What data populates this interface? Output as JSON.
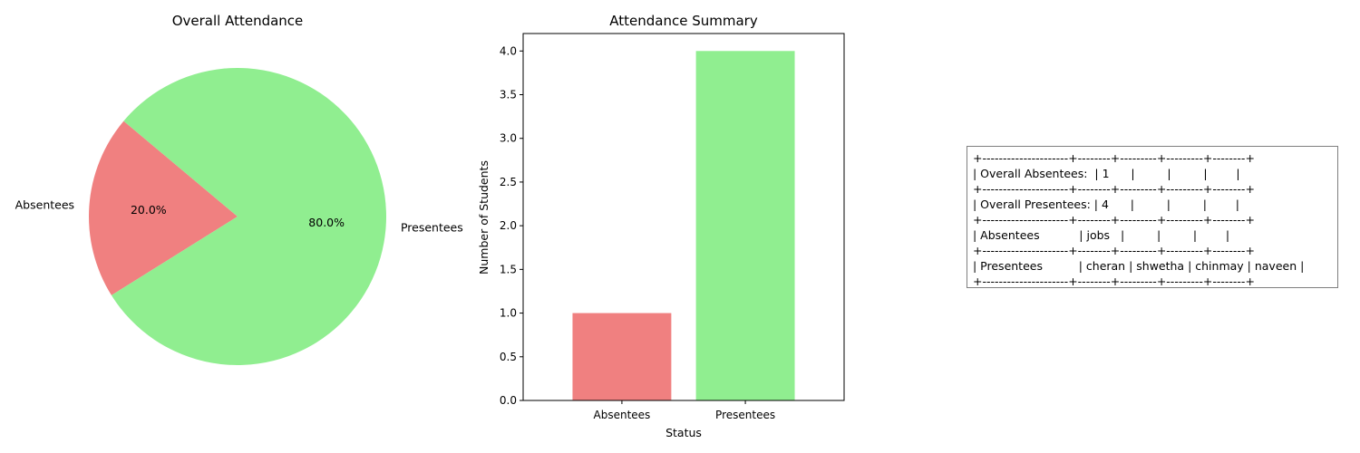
{
  "colors": {
    "absentees": "#f08080",
    "presentees": "#90ee90"
  },
  "chart_data": [
    {
      "type": "pie",
      "title": "Overall Attendance",
      "slices": [
        {
          "label": "Absentees",
          "value": 1,
          "percent_label": "20.0%",
          "color": "#f08080"
        },
        {
          "label": "Presentees",
          "value": 4,
          "percent_label": "80.0%",
          "color": "#90ee90"
        }
      ],
      "start_angle": 140
    },
    {
      "type": "bar",
      "title": "Attendance Summary",
      "categories": [
        "Absentees",
        "Presentees"
      ],
      "values": [
        1,
        4
      ],
      "colors": [
        "#f08080",
        "#90ee90"
      ],
      "xlabel": "Status",
      "ylabel": "Number of Students",
      "ylim": [
        0,
        4.2
      ],
      "yticks": [
        "0.0",
        "0.5",
        "1.0",
        "1.5",
        "2.0",
        "2.5",
        "3.0",
        "3.5",
        "4.0"
      ],
      "grid": false
    },
    {
      "type": "table",
      "lines": [
        "+---------------------+--------+---------+---------+--------+",
        "| Overall Absentees:  | 1      |         |         |        |",
        "+---------------------+--------+---------+---------+--------+",
        "| Overall Presentees: | 4      |         |         |        |",
        "+---------------------+--------+---------+---------+--------+",
        "| Absentees           | jobs   |         |         |        |",
        "+---------------------+--------+---------+---------+--------+",
        "| Presentees          | cheran | shwetha | chinmay | naveen |",
        "+---------------------+--------+---------+---------+--------+"
      ]
    }
  ]
}
